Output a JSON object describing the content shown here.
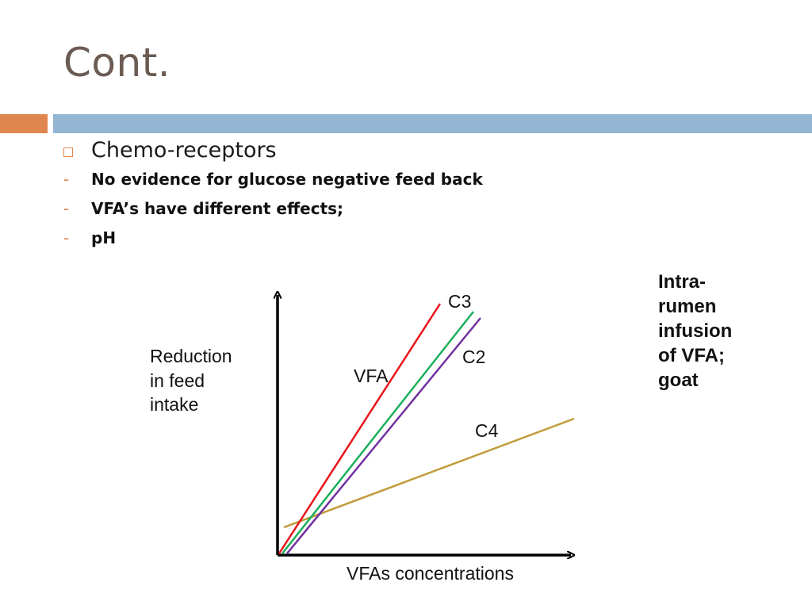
{
  "slide": {
    "title": "Cont.",
    "bullets": {
      "main": "Chemo-receptors",
      "sub_items": [
        "No evidence for glucose negative feed back",
        "VFA’s have different effects;",
        "pH"
      ]
    }
  },
  "diagram": {
    "y_axis_label_lines": [
      "Reduction",
      "in feed",
      "intake"
    ],
    "x_axis_label": "VFAs concentrations",
    "group_label": "VFA",
    "lines": [
      {
        "name": "C3",
        "color": "#e8141b"
      },
      {
        "name": "C2",
        "color": "#7030a0"
      },
      {
        "name": "C4",
        "color": "#c19a3a"
      }
    ],
    "unlabeled_line_color": "#1aaf5a",
    "side_note_lines": [
      "Intra-",
      "rumen",
      "infusion",
      "of VFA;",
      "goat"
    ]
  },
  "colors": {
    "accent_orange": "#e0874f",
    "accent_blue": "#94b6d2",
    "title": "#6b5b52"
  }
}
